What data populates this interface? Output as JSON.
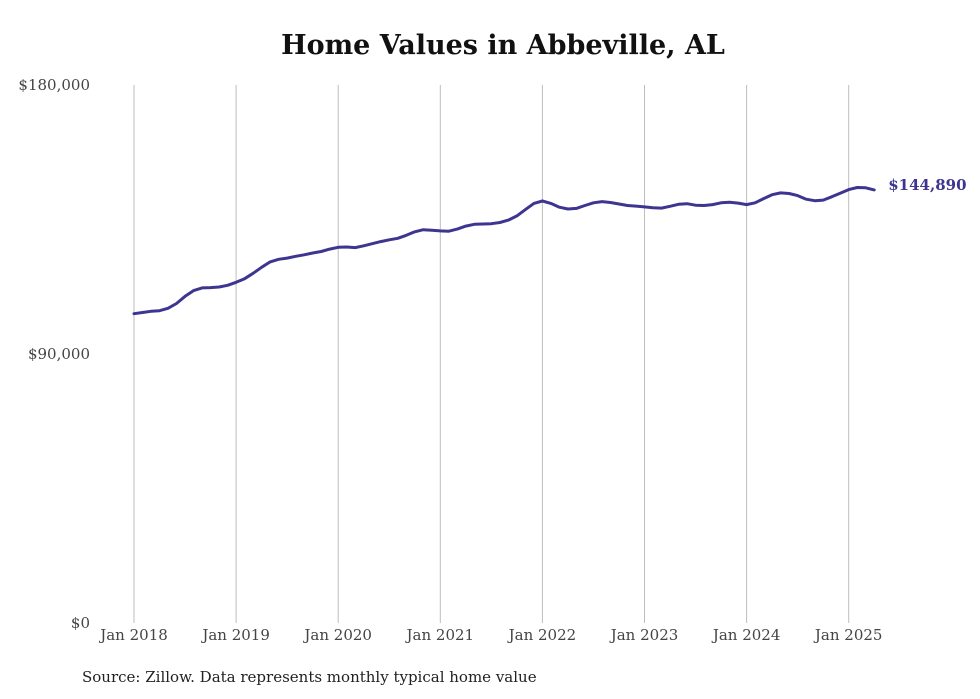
{
  "chart_data": {
    "type": "line",
    "title": "Home Values in Abbeville, AL",
    "source": "Source: Zillow. Data represents monthly typical home value",
    "ylim": [
      0,
      180000
    ],
    "y_ticks": [
      {
        "value": 0,
        "label": "$0"
      },
      {
        "value": 90000,
        "label": "$90,000"
      },
      {
        "value": 180000,
        "label": "$180,000"
      }
    ],
    "x_ticks": [
      "Jan 2018",
      "Jan 2019",
      "Jan 2020",
      "Jan 2021",
      "Jan 2022",
      "Jan 2023",
      "Jan 2024",
      "Jan 2025"
    ],
    "grid": "vertical",
    "line_color": "#3d3590",
    "end_label": "$144,890",
    "series": [
      {
        "x": [
          "2018-01",
          "2018-02",
          "2018-03",
          "2018-04",
          "2018-05",
          "2018-06",
          "2018-07",
          "2018-08",
          "2018-09",
          "2018-10",
          "2018-11",
          "2018-12",
          "2019-01",
          "2019-02",
          "2019-03",
          "2019-04",
          "2019-05",
          "2019-06",
          "2019-07",
          "2019-08",
          "2019-09",
          "2019-10",
          "2019-11",
          "2019-12",
          "2020-01",
          "2020-02",
          "2020-03",
          "2020-04",
          "2020-05",
          "2020-06",
          "2020-07",
          "2020-08",
          "2020-09",
          "2020-10",
          "2020-11",
          "2020-12",
          "2021-01",
          "2021-02",
          "2021-03",
          "2021-04",
          "2021-05",
          "2021-06",
          "2021-07",
          "2021-08",
          "2021-09",
          "2021-10",
          "2021-11",
          "2021-12",
          "2022-01",
          "2022-02",
          "2022-03",
          "2022-04",
          "2022-05",
          "2022-06",
          "2022-07",
          "2022-08",
          "2022-09",
          "2022-10",
          "2022-11",
          "2022-12",
          "2023-01",
          "2023-02",
          "2023-03",
          "2023-04",
          "2023-05",
          "2023-06",
          "2023-07",
          "2023-08",
          "2023-09",
          "2023-10",
          "2023-11",
          "2023-12",
          "2024-01",
          "2024-02",
          "2024-03",
          "2024-04",
          "2024-05",
          "2024-06",
          "2024-07",
          "2024-08",
          "2024-09",
          "2024-10",
          "2024-11",
          "2024-12",
          "2025-01",
          "2025-02",
          "2025-03",
          "2025-04"
        ],
        "values": [
          103500,
          103900,
          104300,
          104500,
          105300,
          106900,
          109300,
          111200,
          112100,
          112200,
          112400,
          113000,
          114000,
          115200,
          117000,
          119000,
          120800,
          121700,
          122100,
          122700,
          123200,
          123800,
          124300,
          125100,
          125700,
          125800,
          125600,
          126200,
          126900,
          127600,
          128200,
          128700,
          129700,
          130900,
          131600,
          131400,
          131200,
          131100,
          131800,
          132800,
          133400,
          133500,
          133600,
          134000,
          134800,
          136200,
          138300,
          140400,
          141200,
          140400,
          139100,
          138500,
          138700,
          139700,
          140600,
          141000,
          140700,
          140200,
          139700,
          139500,
          139200,
          138900,
          138800,
          139400,
          140100,
          140300,
          139800,
          139700,
          140000,
          140600,
          140800,
          140500,
          140000,
          140600,
          142000,
          143300,
          143900,
          143700,
          143000,
          141800,
          141300,
          141500,
          142600,
          143800,
          145000,
          145700,
          145600,
          144890
        ]
      }
    ]
  }
}
